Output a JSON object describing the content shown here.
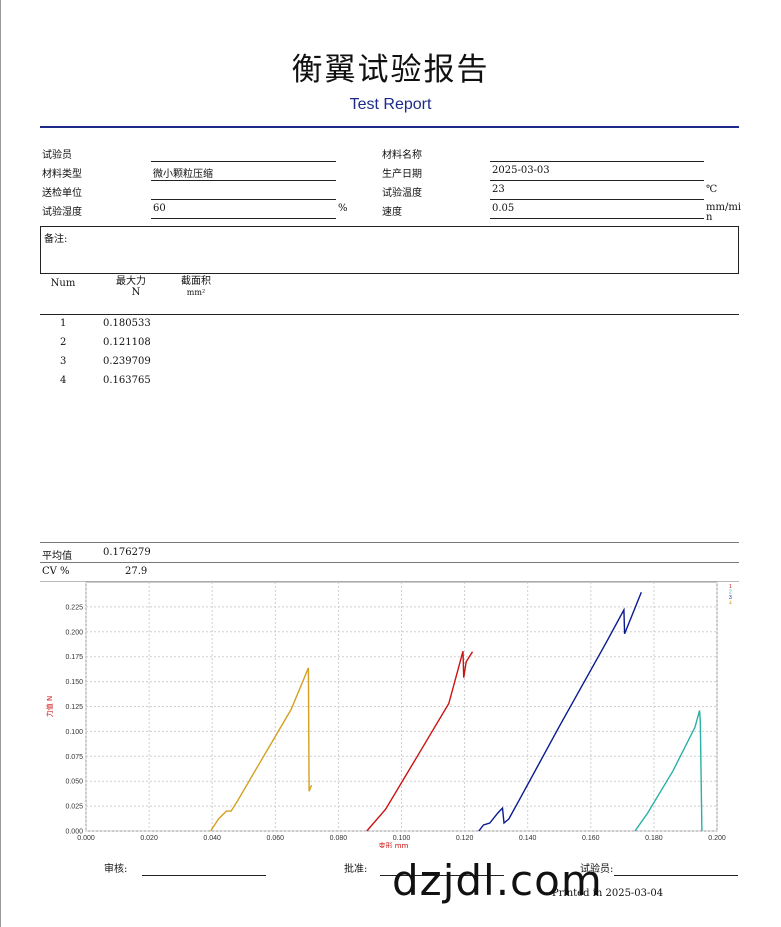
{
  "report": {
    "title": "衡翼试验报告",
    "subtitle": "Test Report"
  },
  "info": {
    "tester_label": "试验员",
    "tester_value": "",
    "material_name_label": "材料名称",
    "material_name_value": "",
    "material_type_label": "材料类型",
    "material_type_value": "微小颗粒压缩",
    "production_date_label": "生产日期",
    "production_date_value": "2025-03-03",
    "submitter_label": "送检单位",
    "submitter_value": "",
    "test_temp_label": "试验温度",
    "test_temp_value": "23",
    "test_temp_unit": "℃",
    "humidity_label": "试验湿度",
    "humidity_value": "60",
    "humidity_unit": "%",
    "speed_label": "速度",
    "speed_value": "0.05",
    "speed_unit_line1": "mm/mi",
    "speed_unit_line2": "n"
  },
  "notes": {
    "label": "备注:"
  },
  "results_table": {
    "columns": [
      {
        "label": "Num",
        "unit": ""
      },
      {
        "label": "最大力",
        "unit": "N"
      },
      {
        "label": "截面积",
        "unit": "mm²"
      }
    ],
    "rows": [
      {
        "num": "1",
        "max_force": "0.180533"
      },
      {
        "num": "2",
        "max_force": "0.121108"
      },
      {
        "num": "3",
        "max_force": "0.239709"
      },
      {
        "num": "4",
        "max_force": "0.163765"
      }
    ]
  },
  "summary": {
    "mean_label": "平均值",
    "mean_value": "0.176279",
    "cv_label": "CV %",
    "cv_value": "27.9"
  },
  "chart_data": {
    "type": "line",
    "xlabel": "变形",
    "xunit": "mm",
    "ylabel": "力值",
    "yunit": "N",
    "xlim": [
      0.0,
      0.2
    ],
    "ylim": [
      0.0,
      0.25
    ],
    "xticks": [
      "0.000",
      "0.020",
      "0.040",
      "0.060",
      "0.080",
      "0.100",
      "0.120",
      "0.140",
      "0.160",
      "0.180",
      "0.200"
    ],
    "yticks": [
      "0.000",
      "0.025",
      "0.050",
      "0.075",
      "0.100",
      "0.125",
      "0.150",
      "0.175",
      "0.200",
      "0.225"
    ],
    "grid": true,
    "legend_position": "top-right",
    "series": [
      {
        "name": "1",
        "color": "#cc1111",
        "x": [
          0.089,
          0.095,
          0.105,
          0.115,
          0.1195,
          0.1197,
          0.1205,
          0.1225
        ],
        "y": [
          0.0,
          0.022,
          0.075,
          0.128,
          0.1805,
          0.154,
          0.17,
          0.18
        ]
      },
      {
        "name": "2",
        "color": "#2ab0a4",
        "x": [
          0.174,
          0.178,
          0.186,
          0.193,
          0.1945,
          0.1947,
          0.1952
        ],
        "y": [
          0.0,
          0.018,
          0.06,
          0.104,
          0.121,
          0.11,
          0.0
        ]
      },
      {
        "name": "3",
        "color": "#0a1a90",
        "x": [
          0.1245,
          0.126,
          0.128,
          0.1305,
          0.132,
          0.1325,
          0.134,
          0.138,
          0.15,
          0.165,
          0.1705,
          0.1707,
          0.176
        ],
        "y": [
          0.0,
          0.006,
          0.008,
          0.018,
          0.023,
          0.008,
          0.012,
          0.035,
          0.105,
          0.19,
          0.222,
          0.198,
          0.2397
        ]
      },
      {
        "name": "4",
        "color": "#d4a020",
        "x": [
          0.0395,
          0.042,
          0.0445,
          0.046,
          0.048,
          0.055,
          0.065,
          0.0705,
          0.0707,
          0.0715
        ],
        "y": [
          0.0,
          0.012,
          0.02,
          0.02,
          0.03,
          0.068,
          0.122,
          0.1638,
          0.04,
          0.046
        ]
      }
    ]
  },
  "signatures": {
    "reviewer_label": "审核:",
    "approver_label": "批准:",
    "tester_label": "试验员:",
    "printed_text": "Printed in 2025-03-04"
  },
  "watermark": {
    "text": "dzjdl.com"
  }
}
